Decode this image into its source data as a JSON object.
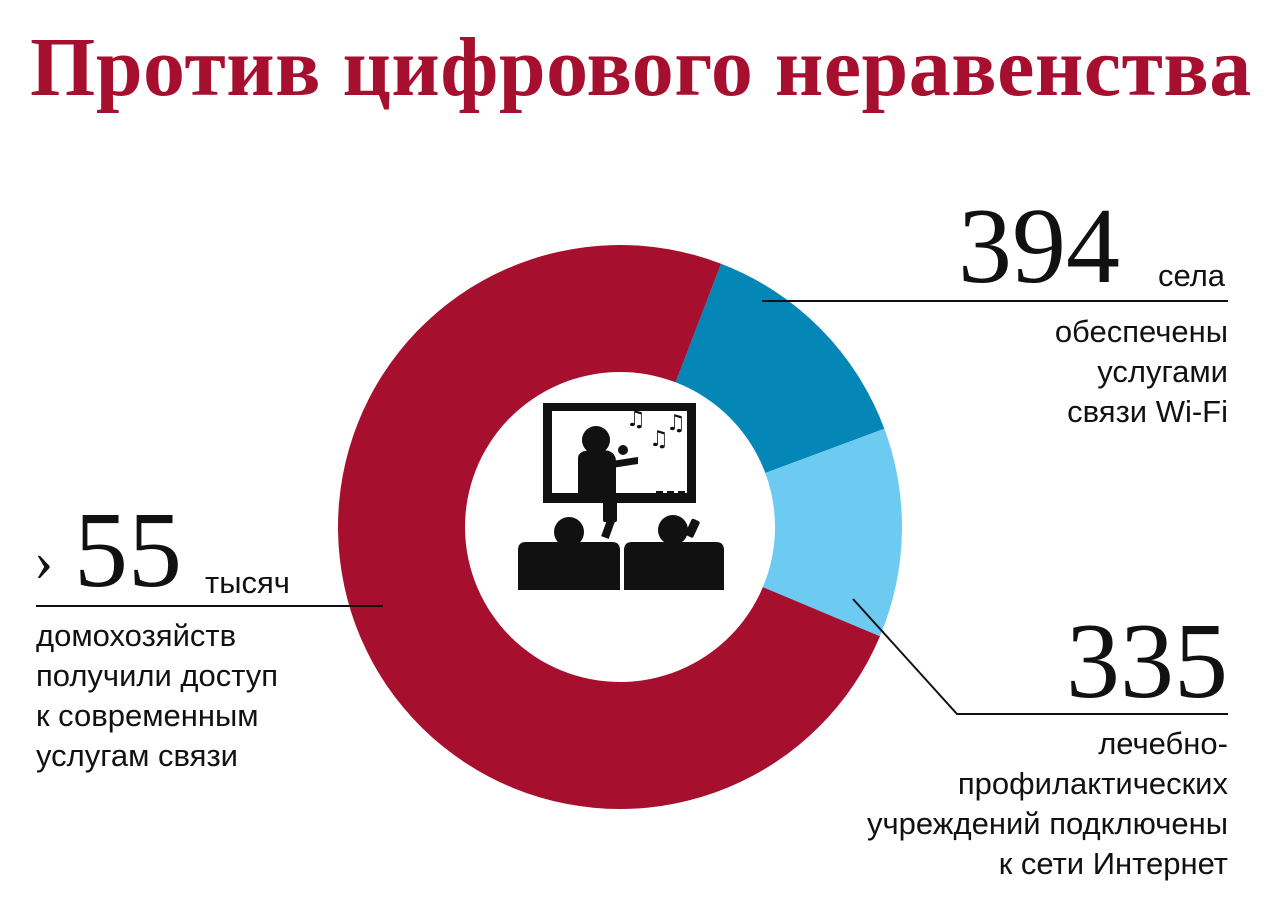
{
  "title": "Против цифрового неравенства",
  "chart_data": {
    "type": "pie",
    "style": "donut",
    "values": [
      55000,
      394,
      335
    ],
    "slice_fractions": [
      0.745,
      0.135,
      0.12
    ],
    "colors": [
      "#a60f2d",
      "#0486b6",
      "#6dcaf0"
    ],
    "center_icon": "karaoke-tv-icon"
  },
  "stats": {
    "households": {
      "prefix": "›",
      "value": "55",
      "unit": "тысяч",
      "lines": [
        "домохозяйств",
        "получили доступ",
        "к современным",
        "услугам связи"
      ]
    },
    "villages": {
      "value": "394",
      "unit": "села",
      "lines": [
        "обеспечены",
        "услугами",
        "связи Wi-Fi"
      ]
    },
    "clinics": {
      "value": "335",
      "lines": [
        "лечебно-",
        "профилактических",
        "учреждений подключены",
        "к сети Интернет"
      ]
    }
  }
}
